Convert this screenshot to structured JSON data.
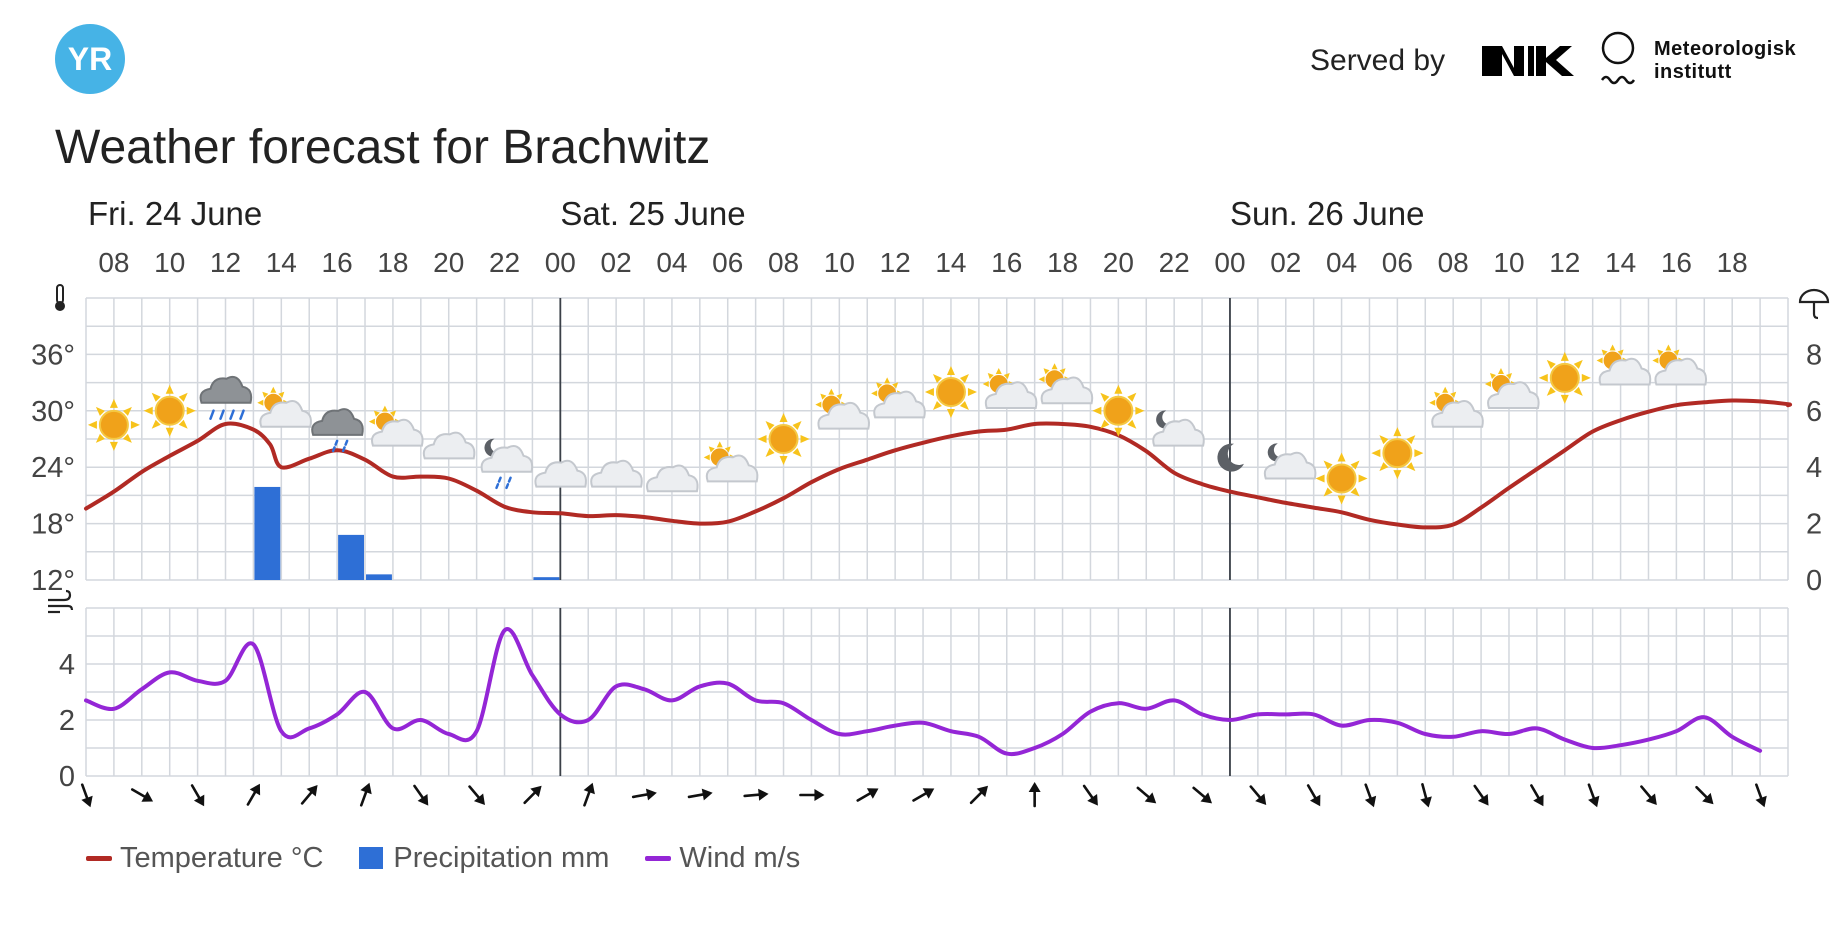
{
  "header": {
    "served_by": "Served by",
    "met_line1": "Meteorologisk",
    "met_line2": "institutt",
    "brand_color": "#46b3e6",
    "logo_text": "YR"
  },
  "title": "Weather forecast for Brachwitz",
  "legend": {
    "temperature": "Temperature °C",
    "precipitation": "Precipitation mm",
    "wind": "Wind m/s"
  },
  "chart_data": {
    "type": "line",
    "days": [
      {
        "label": "Fri. 24 June",
        "start_index": 0
      },
      {
        "label": "Sat. 25 June",
        "start_index": 17
      },
      {
        "label": "Sun. 26 June",
        "start_index": 41
      }
    ],
    "hour_ticks": [
      "08",
      "10",
      "12",
      "14",
      "16",
      "18",
      "20",
      "22",
      "00",
      "02",
      "04",
      "06",
      "08",
      "10",
      "12",
      "14",
      "16",
      "18",
      "20",
      "22",
      "00",
      "02",
      "04",
      "06",
      "08",
      "10",
      "12",
      "14",
      "16",
      "18"
    ],
    "x_start_hour": 7,
    "x_end_hour": 67,
    "temperature": {
      "name": "Temperature °C",
      "color": "#b12a24",
      "ylim": [
        12,
        42
      ],
      "yticks": [
        "12°",
        "18°",
        "24°",
        "30°",
        "36°"
      ],
      "ytick_values": [
        12,
        18,
        24,
        30,
        36
      ],
      "points": [
        [
          7,
          19.6
        ],
        [
          8,
          21.4
        ],
        [
          9,
          23.5
        ],
        [
          10,
          25.2
        ],
        [
          11,
          26.8
        ],
        [
          12,
          28.6
        ],
        [
          13,
          28.0
        ],
        [
          13.6,
          26.4
        ],
        [
          14,
          24.0
        ],
        [
          15,
          24.9
        ],
        [
          16,
          25.8
        ],
        [
          17,
          24.8
        ],
        [
          18,
          23.0
        ],
        [
          19,
          23.0
        ],
        [
          20,
          22.8
        ],
        [
          21,
          21.5
        ],
        [
          22,
          19.8
        ],
        [
          23,
          19.2
        ],
        [
          24,
          19.1
        ],
        [
          25,
          18.8
        ],
        [
          26,
          18.9
        ],
        [
          27,
          18.7
        ],
        [
          28,
          18.3
        ],
        [
          29,
          18.0
        ],
        [
          30,
          18.2
        ],
        [
          31,
          19.3
        ],
        [
          32,
          20.7
        ],
        [
          33,
          22.4
        ],
        [
          34,
          23.8
        ],
        [
          35,
          24.8
        ],
        [
          36,
          25.8
        ],
        [
          37,
          26.6
        ],
        [
          38,
          27.3
        ],
        [
          39,
          27.8
        ],
        [
          40,
          28.0
        ],
        [
          41,
          28.6
        ],
        [
          42,
          28.6
        ],
        [
          43,
          28.3
        ],
        [
          44,
          27.4
        ],
        [
          45,
          25.7
        ],
        [
          46,
          23.4
        ],
        [
          47,
          22.2
        ],
        [
          48,
          21.4
        ],
        [
          49,
          20.8
        ],
        [
          50,
          20.2
        ],
        [
          51,
          19.7
        ],
        [
          52,
          19.2
        ],
        [
          53,
          18.4
        ],
        [
          54,
          17.9
        ],
        [
          55,
          17.6
        ],
        [
          56,
          17.9
        ],
        [
          57,
          19.7
        ],
        [
          58,
          21.8
        ],
        [
          59,
          23.8
        ],
        [
          60,
          25.8
        ],
        [
          61,
          27.8
        ],
        [
          62,
          29.0
        ],
        [
          63,
          29.9
        ],
        [
          64,
          30.6
        ],
        [
          65,
          30.9
        ],
        [
          66,
          31.1
        ],
        [
          67,
          31.0
        ],
        [
          68,
          30.7
        ],
        [
          69,
          30.6
        ]
      ]
    },
    "precipitation": {
      "name": "Precipitation mm",
      "color": "#2e6fd6",
      "ylim": [
        0,
        10
      ],
      "yticks": [
        "0",
        "2",
        "4",
        "6",
        "8"
      ],
      "ytick_values": [
        0,
        2,
        4,
        6,
        8
      ],
      "bars": [
        [
          13,
          3.3
        ],
        [
          16,
          1.6
        ],
        [
          17,
          0.2
        ],
        [
          23,
          0.1
        ]
      ]
    },
    "wind": {
      "name": "Wind m/s",
      "color": "#9426d6",
      "ylim": [
        0,
        6
      ],
      "yticks": [
        "0",
        "2",
        "4"
      ],
      "ytick_values": [
        0,
        2,
        4
      ],
      "points": [
        [
          7,
          2.7
        ],
        [
          8,
          2.4
        ],
        [
          9,
          3.1
        ],
        [
          10,
          3.7
        ],
        [
          11,
          3.4
        ],
        [
          12,
          3.4
        ],
        [
          13,
          4.7
        ],
        [
          14,
          1.6
        ],
        [
          15,
          1.7
        ],
        [
          16,
          2.2
        ],
        [
          17,
          3.0
        ],
        [
          18,
          1.7
        ],
        [
          19,
          2.0
        ],
        [
          20,
          1.5
        ],
        [
          21,
          1.6
        ],
        [
          22,
          5.2
        ],
        [
          23,
          3.6
        ],
        [
          24,
          2.2
        ],
        [
          25,
          2.0
        ],
        [
          26,
          3.2
        ],
        [
          27,
          3.1
        ],
        [
          28,
          2.7
        ],
        [
          29,
          3.2
        ],
        [
          30,
          3.3
        ],
        [
          31,
          2.7
        ],
        [
          32,
          2.6
        ],
        [
          33,
          2.0
        ],
        [
          34,
          1.5
        ],
        [
          35,
          1.6
        ],
        [
          36,
          1.8
        ],
        [
          37,
          1.9
        ],
        [
          38,
          1.6
        ],
        [
          39,
          1.4
        ],
        [
          40,
          0.8
        ],
        [
          41,
          1.0
        ],
        [
          42,
          1.5
        ],
        [
          43,
          2.3
        ],
        [
          44,
          2.6
        ],
        [
          45,
          2.4
        ],
        [
          46,
          2.7
        ],
        [
          47,
          2.2
        ],
        [
          48,
          2.0
        ],
        [
          49,
          2.2
        ],
        [
          50,
          2.2
        ],
        [
          51,
          2.2
        ],
        [
          52,
          1.8
        ],
        [
          53,
          2.0
        ],
        [
          54,
          1.9
        ],
        [
          55,
          1.5
        ],
        [
          56,
          1.4
        ],
        [
          57,
          1.6
        ],
        [
          58,
          1.5
        ],
        [
          59,
          1.7
        ],
        [
          60,
          1.3
        ],
        [
          61,
          1.0
        ],
        [
          62,
          1.1
        ],
        [
          63,
          1.3
        ],
        [
          64,
          1.6
        ],
        [
          65,
          2.1
        ],
        [
          66,
          1.4
        ],
        [
          67,
          0.9
        ]
      ]
    },
    "wind_directions": [
      [
        7,
        160
      ],
      [
        9,
        120
      ],
      [
        11,
        150
      ],
      [
        13,
        30
      ],
      [
        15,
        40
      ],
      [
        17,
        20
      ],
      [
        19,
        145
      ],
      [
        21,
        140
      ],
      [
        23,
        45
      ],
      [
        25,
        20
      ],
      [
        27,
        80
      ],
      [
        29,
        80
      ],
      [
        31,
        85
      ],
      [
        33,
        90
      ],
      [
        35,
        60
      ],
      [
        37,
        60
      ],
      [
        39,
        45
      ],
      [
        41,
        0
      ],
      [
        43,
        145
      ],
      [
        45,
        130
      ],
      [
        47,
        130
      ],
      [
        49,
        140
      ],
      [
        51,
        150
      ],
      [
        53,
        160
      ],
      [
        55,
        165
      ],
      [
        57,
        145
      ],
      [
        59,
        150
      ],
      [
        61,
        160
      ],
      [
        63,
        140
      ],
      [
        65,
        135
      ],
      [
        67,
        160
      ]
    ],
    "weather_icons": [
      {
        "hour": 8,
        "temp": 28.5,
        "icon": "sun-icon"
      },
      {
        "hour": 10,
        "temp": 30.0,
        "icon": "sun-icon"
      },
      {
        "hour": 12,
        "temp": 31.5,
        "icon": "rain-icon"
      },
      {
        "hour": 14,
        "temp": 30.0,
        "icon": "partly-cloudy-icon"
      },
      {
        "hour": 16,
        "temp": 28.5,
        "icon": "drizzle-icon"
      },
      {
        "hour": 18,
        "temp": 28.0,
        "icon": "partly-cloudy-icon"
      },
      {
        "hour": 20,
        "temp": 26.0,
        "icon": "cloud-icon"
      },
      {
        "hour": 22,
        "temp": 25.0,
        "icon": "night-drizzle-icon"
      },
      {
        "hour": 24,
        "temp": 23.0,
        "icon": "cloud-icon"
      },
      {
        "hour": 26,
        "temp": 23.0,
        "icon": "cloud-icon"
      },
      {
        "hour": 28,
        "temp": 22.5,
        "icon": "cloud-icon"
      },
      {
        "hour": 30,
        "temp": 24.2,
        "icon": "partly-cloudy-icon"
      },
      {
        "hour": 32,
        "temp": 27.0,
        "icon": "sun-icon"
      },
      {
        "hour": 34,
        "temp": 29.8,
        "icon": "partly-cloudy-icon"
      },
      {
        "hour": 36,
        "temp": 31.0,
        "icon": "partly-cloudy-icon"
      },
      {
        "hour": 38,
        "temp": 32.0,
        "icon": "sun-icon"
      },
      {
        "hour": 40,
        "temp": 32.0,
        "icon": "partly-cloudy-icon"
      },
      {
        "hour": 42,
        "temp": 32.5,
        "icon": "partly-cloudy-icon"
      },
      {
        "hour": 44,
        "temp": 30.0,
        "icon": "sun-icon"
      },
      {
        "hour": 46,
        "temp": 28.0,
        "icon": "night-cloudy-icon"
      },
      {
        "hour": 48,
        "temp": 25.0,
        "icon": "moon-icon"
      },
      {
        "hour": 50,
        "temp": 24.5,
        "icon": "night-cloudy-icon"
      },
      {
        "hour": 52,
        "temp": 22.8,
        "icon": "sun-icon"
      },
      {
        "hour": 54,
        "temp": 25.5,
        "icon": "sun-icon"
      },
      {
        "hour": 56,
        "temp": 30.0,
        "icon": "partly-cloudy-icon"
      },
      {
        "hour": 58,
        "temp": 32.0,
        "icon": "partly-cloudy-icon"
      },
      {
        "hour": 60,
        "temp": 33.5,
        "icon": "sun-icon"
      },
      {
        "hour": 62,
        "temp": 34.5,
        "icon": "partly-cloudy-icon"
      },
      {
        "hour": 64,
        "temp": 34.5,
        "icon": "partly-cloudy-icon"
      }
    ]
  }
}
